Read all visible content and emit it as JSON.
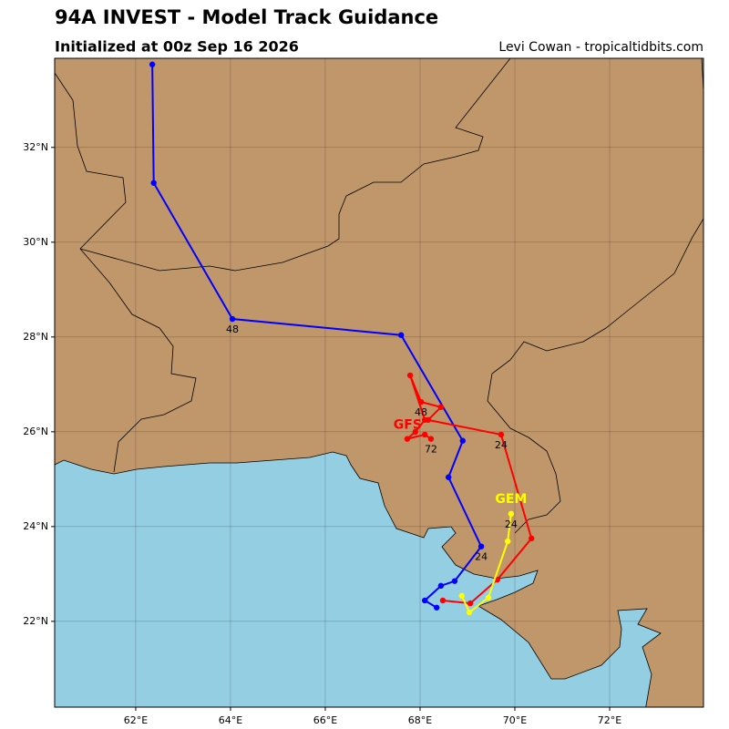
{
  "header": {
    "title": "94A INVEST - Model Track Guidance",
    "subtitle": "Initialized at 00z Sep 16 2026",
    "credit": "Levi Cowan - tropicaltidbits.com"
  },
  "map": {
    "xlim": [
      60.29,
      73.98
    ],
    "ylim": [
      20.19,
      33.88
    ],
    "grid": true,
    "xticks": [
      {
        "value": 62,
        "label": "62°E"
      },
      {
        "value": 64,
        "label": "64°E"
      },
      {
        "value": 66,
        "label": "66°E"
      },
      {
        "value": 68,
        "label": "68°E"
      },
      {
        "value": 70,
        "label": "70°E"
      },
      {
        "value": 72,
        "label": "72°E"
      }
    ],
    "yticks": [
      {
        "value": 22,
        "label": "22°N"
      },
      {
        "value": 24,
        "label": "24°N"
      },
      {
        "value": 26,
        "label": "26°N"
      },
      {
        "value": 28,
        "label": "28°N"
      },
      {
        "value": 30,
        "label": "30°N"
      },
      {
        "value": 32,
        "label": "32°N"
      }
    ],
    "tracks": [
      {
        "color": "#0000ff",
        "points": [
          {
            "lon": 68.35,
            "lat": 22.29
          },
          {
            "lon": 68.1,
            "lat": 22.44
          },
          {
            "lon": 68.44,
            "lat": 22.75
          },
          {
            "lon": 68.73,
            "lat": 22.85
          },
          {
            "lon": 69.29,
            "lat": 23.58,
            "label": "24"
          },
          {
            "lon": 68.6,
            "lat": 25.04
          },
          {
            "lon": 68.9,
            "lat": 25.81
          },
          {
            "lon": 67.6,
            "lat": 28.04
          },
          {
            "lon": 64.04,
            "lat": 28.38,
            "label": "48"
          },
          {
            "lon": 62.38,
            "lat": 31.25
          },
          {
            "lon": 62.35,
            "lat": 33.75
          }
        ]
      },
      {
        "name": "GFS",
        "color": "#ff0000",
        "points": [
          {
            "lon": 68.48,
            "lat": 22.44
          },
          {
            "lon": 69.06,
            "lat": 22.38
          },
          {
            "lon": 69.63,
            "lat": 22.88
          },
          {
            "lon": 70.35,
            "lat": 23.75
          },
          {
            "lon": 69.71,
            "lat": 25.94,
            "label": "24"
          },
          {
            "lon": 68.17,
            "lat": 26.25
          },
          {
            "lon": 68.44,
            "lat": 26.52
          },
          {
            "lon": 68.02,
            "lat": 26.63,
            "label": "48"
          },
          {
            "lon": 67.79,
            "lat": 27.19
          },
          {
            "lon": 68.1,
            "lat": 26.25
          },
          {
            "lon": 67.9,
            "lat": 26.0
          },
          {
            "lon": 67.73,
            "lat": 25.85
          },
          {
            "lon": 68.1,
            "lat": 25.94
          },
          {
            "lon": 68.23,
            "lat": 25.85,
            "label": "72"
          }
        ]
      },
      {
        "name": "GEM",
        "color": "#ffff00",
        "points": [
          {
            "lon": 68.88,
            "lat": 22.54
          },
          {
            "lon": 69.04,
            "lat": 22.19
          },
          {
            "lon": 69.44,
            "lat": 22.5
          },
          {
            "lon": 69.85,
            "lat": 23.69
          },
          {
            "lon": 69.92,
            "lat": 24.27,
            "label": "24"
          }
        ]
      }
    ]
  }
}
